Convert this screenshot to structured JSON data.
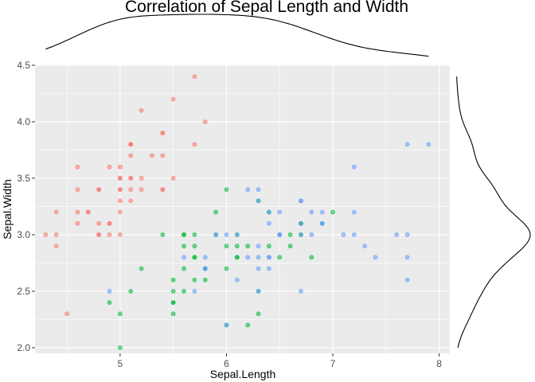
{
  "chart_data": {
    "type": "scatter",
    "title": "Correlation of Sepal Length and Width",
    "xlabel": "Sepal.Length",
    "ylabel": "Sepal.Width",
    "xlim": [
      4.2,
      8.1
    ],
    "ylim": [
      1.95,
      4.5
    ],
    "xticks": [
      "5",
      "6",
      "7",
      "8"
    ],
    "yticks": [
      "2.0",
      "2.5",
      "3.0",
      "3.5",
      "4.0",
      "4.5"
    ],
    "grid": true,
    "legend": "none",
    "marginal": "density",
    "colors": {
      "panel_bg": "#ebebeb",
      "grid": "#ffffff",
      "series": [
        "#f8766d",
        "#00ba38",
        "#619cff"
      ]
    },
    "series": [
      {
        "color": "#f8766d",
        "points": [
          [
            5.1,
            3.5
          ],
          [
            4.9,
            3.0
          ],
          [
            4.7,
            3.2
          ],
          [
            4.6,
            3.1
          ],
          [
            5.0,
            3.6
          ],
          [
            5.4,
            3.9
          ],
          [
            4.6,
            3.4
          ],
          [
            5.0,
            3.4
          ],
          [
            4.4,
            2.9
          ],
          [
            4.9,
            3.1
          ],
          [
            5.4,
            3.7
          ],
          [
            4.8,
            3.4
          ],
          [
            4.8,
            3.0
          ],
          [
            4.3,
            3.0
          ],
          [
            5.8,
            4.0
          ],
          [
            5.7,
            4.4
          ],
          [
            5.4,
            3.9
          ],
          [
            5.1,
            3.5
          ],
          [
            5.7,
            3.8
          ],
          [
            5.1,
            3.8
          ],
          [
            5.4,
            3.4
          ],
          [
            5.1,
            3.7
          ],
          [
            4.6,
            3.6
          ],
          [
            5.1,
            3.3
          ],
          [
            4.8,
            3.4
          ],
          [
            5.0,
            3.0
          ],
          [
            5.0,
            3.4
          ],
          [
            5.2,
            3.5
          ],
          [
            5.2,
            3.4
          ],
          [
            4.7,
            3.2
          ],
          [
            4.8,
            3.1
          ],
          [
            5.4,
            3.4
          ],
          [
            5.2,
            4.1
          ],
          [
            5.5,
            4.2
          ],
          [
            4.9,
            3.1
          ],
          [
            5.0,
            3.2
          ],
          [
            5.5,
            3.5
          ],
          [
            4.9,
            3.6
          ],
          [
            4.4,
            3.0
          ],
          [
            5.1,
            3.4
          ],
          [
            5.0,
            3.5
          ],
          [
            4.5,
            2.3
          ],
          [
            4.4,
            3.2
          ],
          [
            5.0,
            3.5
          ],
          [
            5.1,
            3.8
          ],
          [
            4.8,
            3.0
          ],
          [
            5.1,
            3.8
          ],
          [
            4.6,
            3.2
          ],
          [
            5.3,
            3.7
          ],
          [
            5.0,
            3.3
          ]
        ]
      },
      {
        "color": "#00ba38",
        "points": [
          [
            7.0,
            3.2
          ],
          [
            6.4,
            3.2
          ],
          [
            6.9,
            3.1
          ],
          [
            5.5,
            2.3
          ],
          [
            6.5,
            2.8
          ],
          [
            5.7,
            2.8
          ],
          [
            6.3,
            3.3
          ],
          [
            4.9,
            2.4
          ],
          [
            6.6,
            2.9
          ],
          [
            5.2,
            2.7
          ],
          [
            5.0,
            2.0
          ],
          [
            5.9,
            3.0
          ],
          [
            6.0,
            2.2
          ],
          [
            6.1,
            2.9
          ],
          [
            5.6,
            2.9
          ],
          [
            6.7,
            3.1
          ],
          [
            5.6,
            3.0
          ],
          [
            5.8,
            2.7
          ],
          [
            6.2,
            2.2
          ],
          [
            5.6,
            2.5
          ],
          [
            5.9,
            3.2
          ],
          [
            6.1,
            2.8
          ],
          [
            6.3,
            2.5
          ],
          [
            6.1,
            2.8
          ],
          [
            6.4,
            2.9
          ],
          [
            6.6,
            3.0
          ],
          [
            6.8,
            2.8
          ],
          [
            6.7,
            3.0
          ],
          [
            6.0,
            2.9
          ],
          [
            5.7,
            2.6
          ],
          [
            5.5,
            2.4
          ],
          [
            5.5,
            2.4
          ],
          [
            5.8,
            2.7
          ],
          [
            6.0,
            2.7
          ],
          [
            5.4,
            3.0
          ],
          [
            6.0,
            3.4
          ],
          [
            6.7,
            3.1
          ],
          [
            6.3,
            2.3
          ],
          [
            5.6,
            3.0
          ],
          [
            5.5,
            2.5
          ],
          [
            5.5,
            2.6
          ],
          [
            6.1,
            3.0
          ],
          [
            5.8,
            2.6
          ],
          [
            5.0,
            2.3
          ],
          [
            5.6,
            2.7
          ],
          [
            5.7,
            3.0
          ],
          [
            5.7,
            2.9
          ],
          [
            6.2,
            2.9
          ],
          [
            5.1,
            2.5
          ],
          [
            5.7,
            2.8
          ]
        ]
      },
      {
        "color": "#619cff",
        "points": [
          [
            6.3,
            3.3
          ],
          [
            5.8,
            2.7
          ],
          [
            7.1,
            3.0
          ],
          [
            6.3,
            2.9
          ],
          [
            6.5,
            3.0
          ],
          [
            7.6,
            3.0
          ],
          [
            4.9,
            2.5
          ],
          [
            7.3,
            2.9
          ],
          [
            6.7,
            2.5
          ],
          [
            7.2,
            3.6
          ],
          [
            6.5,
            3.2
          ],
          [
            6.4,
            2.7
          ],
          [
            6.8,
            3.0
          ],
          [
            5.7,
            2.5
          ],
          [
            5.8,
            2.8
          ],
          [
            6.4,
            3.2
          ],
          [
            6.5,
            3.0
          ],
          [
            7.7,
            3.8
          ],
          [
            7.7,
            2.6
          ],
          [
            6.0,
            2.2
          ],
          [
            6.9,
            3.2
          ],
          [
            5.6,
            2.8
          ],
          [
            7.7,
            2.8
          ],
          [
            6.3,
            2.7
          ],
          [
            6.7,
            3.3
          ],
          [
            7.2,
            3.2
          ],
          [
            6.2,
            2.8
          ],
          [
            6.1,
            3.0
          ],
          [
            6.4,
            2.8
          ],
          [
            7.2,
            3.0
          ],
          [
            7.4,
            2.8
          ],
          [
            7.9,
            3.8
          ],
          [
            6.4,
            2.8
          ],
          [
            6.3,
            2.8
          ],
          [
            6.1,
            2.6
          ],
          [
            7.7,
            3.0
          ],
          [
            6.3,
            3.4
          ],
          [
            6.4,
            3.1
          ],
          [
            6.0,
            3.0
          ],
          [
            6.9,
            3.1
          ],
          [
            6.7,
            3.1
          ],
          [
            6.9,
            3.1
          ],
          [
            5.8,
            2.7
          ],
          [
            6.8,
            3.2
          ],
          [
            6.7,
            3.3
          ],
          [
            6.7,
            3.0
          ],
          [
            6.3,
            2.5
          ],
          [
            6.5,
            3.0
          ],
          [
            6.2,
            3.4
          ],
          [
            5.9,
            3.0
          ]
        ]
      }
    ]
  }
}
